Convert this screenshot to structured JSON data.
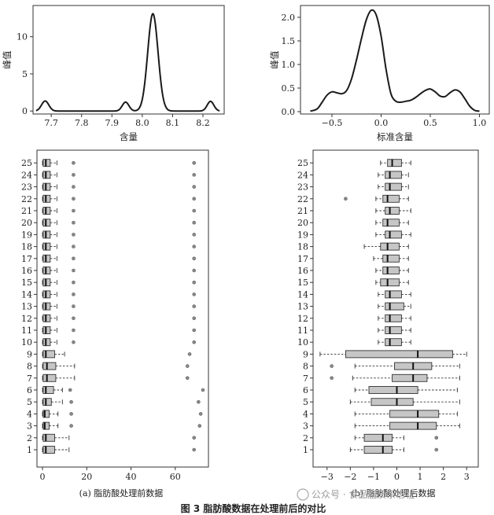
{
  "chart_data": [
    {
      "type": "line",
      "xlabel": "含量",
      "ylabel": "峰值",
      "xlim": [
        7.64,
        8.27
      ],
      "ylim": [
        -0.4,
        14.2
      ],
      "xticks": [
        7.7,
        7.8,
        7.9,
        8.0,
        8.1,
        8.2
      ],
      "yticks": [
        0,
        5,
        10
      ],
      "peaks": [
        {
          "center": 7.68,
          "height": 1.35,
          "width": 0.012
        },
        {
          "center": 7.945,
          "height": 1.2,
          "width": 0.011
        },
        {
          "center": 8.035,
          "height": 13.1,
          "width": 0.017
        },
        {
          "center": 8.225,
          "height": 1.3,
          "width": 0.011
        }
      ],
      "x_range": [
        7.65,
        8.255
      ]
    },
    {
      "type": "line",
      "xlabel": "标准含量",
      "ylabel": "峰值",
      "xlim": [
        -0.82,
        1.1
      ],
      "ylim": [
        -0.05,
        2.25
      ],
      "xticks": [
        -0.5,
        0.0,
        0.5,
        1.0
      ],
      "yticks": [
        0.0,
        0.5,
        1.0,
        1.5,
        2.0
      ],
      "x": [
        -0.72,
        -0.65,
        -0.6,
        -0.55,
        -0.5,
        -0.45,
        -0.4,
        -0.35,
        -0.3,
        -0.25,
        -0.2,
        -0.15,
        -0.1,
        -0.05,
        0.0,
        0.05,
        0.1,
        0.15,
        0.2,
        0.25,
        0.3,
        0.35,
        0.4,
        0.45,
        0.5,
        0.55,
        0.6,
        0.65,
        0.7,
        0.75,
        0.8,
        0.85,
        0.9,
        0.95,
        1.0
      ],
      "y": [
        0.01,
        0.06,
        0.2,
        0.35,
        0.42,
        0.4,
        0.38,
        0.45,
        0.7,
        1.1,
        1.55,
        1.95,
        2.15,
        2.05,
        1.6,
        0.9,
        0.38,
        0.22,
        0.2,
        0.22,
        0.24,
        0.3,
        0.38,
        0.45,
        0.48,
        0.42,
        0.33,
        0.32,
        0.4,
        0.46,
        0.42,
        0.28,
        0.12,
        0.03,
        0.01
      ]
    },
    {
      "type": "box",
      "subtitle": "(a)  脂肪酸处理前数据",
      "xlim": [
        -2.5,
        75
      ],
      "xticks": [
        0,
        20,
        40,
        60
      ],
      "categories": [
        "1",
        "2",
        "3",
        "4",
        "5",
        "6",
        "7",
        "8",
        "9",
        "10",
        "11",
        "12",
        "13",
        "14",
        "15",
        "16",
        "17",
        "18",
        "19",
        "20",
        "21",
        "22",
        "23",
        "24",
        "25"
      ],
      "boxes": [
        {
          "q1": 0.3,
          "med": 1.5,
          "q3": 5.5,
          "lo": 0,
          "hi": 12,
          "out": [
            68.5
          ]
        },
        {
          "q1": 0.3,
          "med": 1.5,
          "q3": 5.5,
          "lo": 0,
          "hi": 12,
          "out": [
            68.5
          ]
        },
        {
          "q1": 0.3,
          "med": 1.0,
          "q3": 3.0,
          "lo": 0,
          "hi": 7,
          "out": [
            13,
            71
          ]
        },
        {
          "q1": 0.3,
          "med": 1.0,
          "q3": 3.0,
          "lo": 0,
          "hi": 7,
          "out": [
            13,
            71.5
          ]
        },
        {
          "q1": 0.3,
          "med": 1.5,
          "q3": 4.0,
          "lo": 0,
          "hi": 9,
          "out": [
            13,
            70.5
          ]
        },
        {
          "q1": 0.3,
          "med": 1.5,
          "q3": 5.0,
          "lo": 0,
          "hi": 9,
          "out": [
            12.5,
            72.5
          ]
        },
        {
          "q1": 0.3,
          "med": 2.0,
          "q3": 6.0,
          "lo": 0,
          "hi": 14.5,
          "out": [
            65.5
          ]
        },
        {
          "q1": 0.3,
          "med": 2.0,
          "q3": 6.0,
          "lo": 0,
          "hi": 14.5,
          "out": [
            65.5
          ]
        },
        {
          "q1": 0.3,
          "med": 1.5,
          "q3": 5.5,
          "lo": 0,
          "hi": 10,
          "out": [
            66.5
          ]
        },
        {
          "q1": 0.3,
          "med": 1.5,
          "q3": 3.5,
          "lo": 0,
          "hi": 6.5,
          "out": [
            14,
            68.5
          ]
        },
        {
          "q1": 0.3,
          "med": 1.5,
          "q3": 3.5,
          "lo": 0,
          "hi": 6.5,
          "out": [
            14,
            68.5
          ]
        },
        {
          "q1": 0.3,
          "med": 1.5,
          "q3": 3.5,
          "lo": 0,
          "hi": 6.5,
          "out": [
            14,
            68.5
          ]
        },
        {
          "q1": 0.3,
          "med": 1.5,
          "q3": 3.5,
          "lo": 0,
          "hi": 6.5,
          "out": [
            14,
            68.5
          ]
        },
        {
          "q1": 0.3,
          "med": 1.5,
          "q3": 3.5,
          "lo": 0,
          "hi": 6.5,
          "out": [
            14,
            68.5
          ]
        },
        {
          "q1": 0.3,
          "med": 1.5,
          "q3": 3.5,
          "lo": 0,
          "hi": 6.5,
          "out": [
            14,
            68.5
          ]
        },
        {
          "q1": 0.3,
          "med": 1.5,
          "q3": 3.5,
          "lo": 0,
          "hi": 6.5,
          "out": [
            14,
            68.5
          ]
        },
        {
          "q1": 0.3,
          "med": 1.5,
          "q3": 3.5,
          "lo": 0,
          "hi": 6.5,
          "out": [
            14,
            68.5
          ]
        },
        {
          "q1": 0.3,
          "med": 1.5,
          "q3": 3.5,
          "lo": 0,
          "hi": 6.5,
          "out": [
            14,
            68.5
          ]
        },
        {
          "q1": 0.3,
          "med": 1.5,
          "q3": 3.5,
          "lo": 0,
          "hi": 6.5,
          "out": [
            14,
            68.5
          ]
        },
        {
          "q1": 0.3,
          "med": 1.5,
          "q3": 3.5,
          "lo": 0,
          "hi": 6.5,
          "out": [
            14,
            68.5
          ]
        },
        {
          "q1": 0.3,
          "med": 1.5,
          "q3": 3.5,
          "lo": 0,
          "hi": 6.5,
          "out": [
            14,
            68.5
          ]
        },
        {
          "q1": 0.3,
          "med": 1.5,
          "q3": 3.5,
          "lo": 0,
          "hi": 6.5,
          "out": [
            14,
            68.5
          ]
        },
        {
          "q1": 0.3,
          "med": 1.5,
          "q3": 3.5,
          "lo": 0,
          "hi": 6.5,
          "out": [
            14,
            68.5
          ]
        },
        {
          "q1": 0.3,
          "med": 1.5,
          "q3": 3.5,
          "lo": 0,
          "hi": 6.5,
          "out": [
            14,
            68.5
          ]
        },
        {
          "q1": 0.3,
          "med": 1.5,
          "q3": 3.5,
          "lo": 0,
          "hi": 6.5,
          "out": [
            14,
            68.5
          ]
        }
      ]
    },
    {
      "type": "box",
      "subtitle": "(b)  脂肪酸处理后数据",
      "xlim": [
        -3.6,
        3.5
      ],
      "xticks": [
        -3,
        -2,
        -1,
        0,
        1,
        2,
        3
      ],
      "categories": [
        "1",
        "2",
        "3",
        "4",
        "5",
        "6",
        "7",
        "8",
        "9",
        "10",
        "11",
        "12",
        "13",
        "14",
        "15",
        "16",
        "17",
        "18",
        "19",
        "20",
        "21",
        "22",
        "23",
        "24",
        "25"
      ],
      "boxes": [
        {
          "q1": -1.4,
          "med": -0.6,
          "q3": -0.2,
          "lo": -2.0,
          "hi": 0.3,
          "out": [
            1.7
          ]
        },
        {
          "q1": -1.4,
          "med": -0.6,
          "q3": -0.2,
          "lo": -1.8,
          "hi": 0.3,
          "out": [
            1.7
          ]
        },
        {
          "q1": -0.3,
          "med": 0.9,
          "q3": 1.7,
          "lo": -1.8,
          "hi": 2.7,
          "out": []
        },
        {
          "q1": -0.3,
          "med": 0.9,
          "q3": 1.8,
          "lo": -1.8,
          "hi": 2.6,
          "out": []
        },
        {
          "q1": -1.1,
          "med": 0.0,
          "q3": 0.7,
          "lo": -2.0,
          "hi": 2.7,
          "out": []
        },
        {
          "q1": -1.2,
          "med": 0.0,
          "q3": 0.9,
          "lo": -1.8,
          "hi": 2.6,
          "out": []
        },
        {
          "q1": -0.2,
          "med": 0.7,
          "q3": 1.3,
          "lo": -1.9,
          "hi": 2.7,
          "out": [
            -2.8
          ]
        },
        {
          "q1": -0.1,
          "med": 0.7,
          "q3": 1.5,
          "lo": -1.8,
          "hi": 2.7,
          "out": [
            -2.8
          ]
        },
        {
          "q1": -2.2,
          "med": 0.9,
          "q3": 2.4,
          "lo": -3.3,
          "hi": 3.0,
          "out": []
        },
        {
          "q1": -0.5,
          "med": -0.3,
          "q3": 0.2,
          "lo": -0.8,
          "hi": 0.6,
          "out": []
        },
        {
          "q1": -0.5,
          "med": -0.3,
          "q3": 0.2,
          "lo": -0.8,
          "hi": 0.6,
          "out": []
        },
        {
          "q1": -0.5,
          "med": -0.3,
          "q3": 0.2,
          "lo": -0.8,
          "hi": 0.6,
          "out": []
        },
        {
          "q1": -0.5,
          "med": -0.3,
          "q3": 0.3,
          "lo": -0.8,
          "hi": 0.6,
          "out": []
        },
        {
          "q1": -0.5,
          "med": -0.3,
          "q3": 0.2,
          "lo": -0.8,
          "hi": 0.6,
          "out": []
        },
        {
          "q1": -0.7,
          "med": -0.4,
          "q3": 0.1,
          "lo": -0.9,
          "hi": 0.5,
          "out": []
        },
        {
          "q1": -0.6,
          "med": -0.4,
          "q3": 0.1,
          "lo": -0.9,
          "hi": 0.5,
          "out": []
        },
        {
          "q1": -0.6,
          "med": -0.4,
          "q3": 0.1,
          "lo": -1.0,
          "hi": 0.5,
          "out": []
        },
        {
          "q1": -0.7,
          "med": -0.4,
          "q3": 0.1,
          "lo": -1.4,
          "hi": 0.5,
          "out": []
        },
        {
          "q1": -0.5,
          "med": -0.3,
          "q3": 0.2,
          "lo": -0.9,
          "hi": 0.6,
          "out": []
        },
        {
          "q1": -0.6,
          "med": -0.4,
          "q3": 0.1,
          "lo": -0.9,
          "hi": 0.5,
          "out": []
        },
        {
          "q1": -0.5,
          "med": -0.3,
          "q3": 0.1,
          "lo": -0.9,
          "hi": 0.6,
          "out": []
        },
        {
          "q1": -0.6,
          "med": -0.4,
          "q3": 0.1,
          "lo": -0.9,
          "hi": 0.5,
          "out": [
            -2.2
          ]
        },
        {
          "q1": -0.5,
          "med": -0.3,
          "q3": 0.2,
          "lo": -0.8,
          "hi": 0.5,
          "out": []
        },
        {
          "q1": -0.5,
          "med": -0.3,
          "q3": 0.2,
          "lo": -0.8,
          "hi": 0.5,
          "out": []
        },
        {
          "q1": -0.4,
          "med": -0.2,
          "q3": 0.2,
          "lo": -0.7,
          "hi": 0.6,
          "out": []
        }
      ]
    }
  ],
  "caption": "图 3    脂肪酸数据在处理前后的对比",
  "watermark": "公众号 · 食品脂质杂志社"
}
